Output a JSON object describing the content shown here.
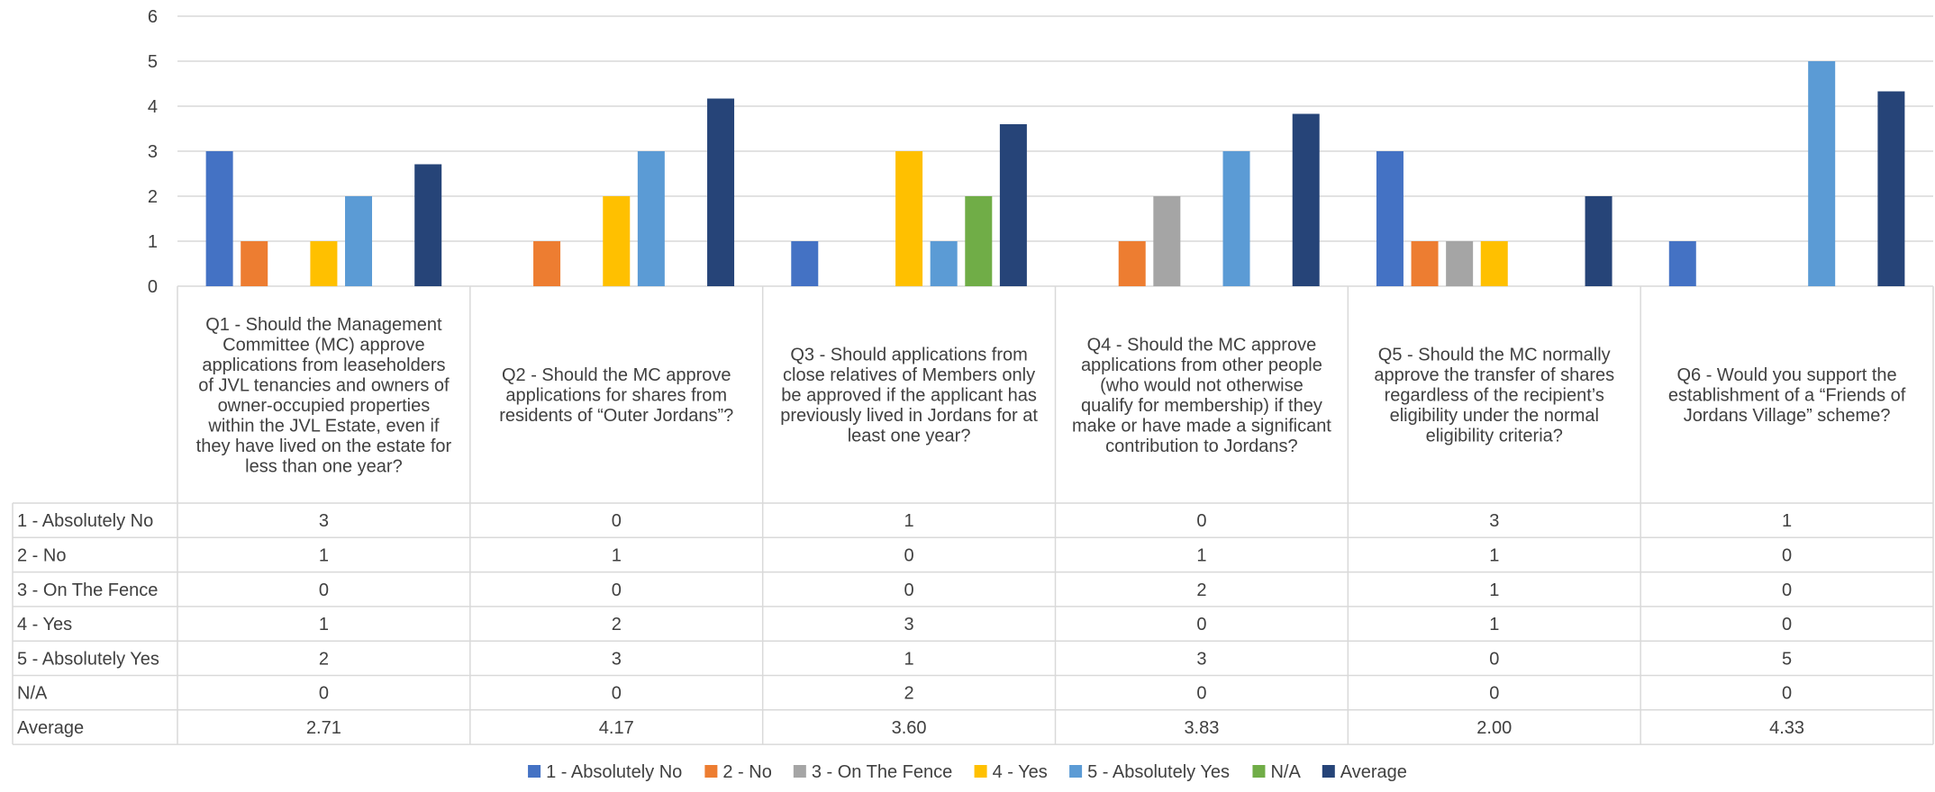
{
  "chart_data": {
    "type": "bar",
    "ylim": [
      0,
      6
    ],
    "yticks": [
      0,
      1,
      2,
      3,
      4,
      5,
      6
    ],
    "grid": true,
    "legend_position": "bottom",
    "categories": [
      "Q1 - Should the Management Committee (MC) approve applications from leaseholders of JVL tenancies and owners of owner-occupied properties within the JVL Estate, even if they have lived on the estate for less than one year?",
      "Q2 - Should the MC approve applications for shares from residents of “Outer Jordans”?",
      "Q3 - Should applications from close relatives of Members only be approved if the applicant has previously lived in Jordans for at least one year?",
      "Q4 - Should the MC approve applications from other people (who would not otherwise qualify for membership) if they make or have made a significant contribution to Jordans?",
      "Q5 - Should the MC normally approve the transfer of shares regardless of the recipient’s eligibility under the normal eligibility criteria?",
      "Q6 - Would you support the establishment of a “Friends of Jordans Village” scheme?"
    ],
    "category_lines": [
      [
        "Q1 - Should the Management",
        "Committee (MC) approve",
        "applications from leaseholders",
        "of JVL tenancies and owners of",
        "owner-occupied properties",
        "within the JVL Estate, even if",
        "they have lived on the estate for",
        "less than one year?"
      ],
      [
        "Q2 - Should the MC approve",
        "applications for shares from",
        "residents of “Outer Jordans”?"
      ],
      [
        "Q3 - Should applications from",
        "close relatives of Members only",
        "be approved if the applicant has",
        "previously lived in Jordans for at",
        "least one year?"
      ],
      [
        "Q4 - Should the MC approve",
        "applications from other people",
        "(who would not otherwise",
        "qualify for membership) if they",
        "make or have made a significant",
        "contribution to Jordans?"
      ],
      [
        "Q5 - Should the MC normally",
        "approve the transfer of shares",
        "regardless of the recipient’s",
        "eligibility under the normal",
        "eligibility criteria?"
      ],
      [
        "Q6 - Would you support the",
        "establishment of a “Friends of",
        "Jordans Village” scheme?"
      ]
    ],
    "series": [
      {
        "name": "1 - Absolutely No",
        "color": "#4472C4",
        "values": [
          3,
          0,
          1,
          0,
          3,
          1
        ],
        "labels": [
          "3",
          "0",
          "1",
          "0",
          "3",
          "1"
        ]
      },
      {
        "name": "2 - No",
        "color": "#ED7D31",
        "values": [
          1,
          1,
          0,
          1,
          1,
          0
        ],
        "labels": [
          "1",
          "1",
          "0",
          "1",
          "1",
          "0"
        ]
      },
      {
        "name": "3 - On The Fence",
        "color": "#A5A5A5",
        "values": [
          0,
          0,
          0,
          2,
          1,
          0
        ],
        "labels": [
          "0",
          "0",
          "0",
          "2",
          "1",
          "0"
        ]
      },
      {
        "name": "4 - Yes",
        "color": "#FFC000",
        "values": [
          1,
          2,
          3,
          0,
          1,
          0
        ],
        "labels": [
          "1",
          "2",
          "3",
          "0",
          "1",
          "0"
        ]
      },
      {
        "name": "5 - Absolutely Yes",
        "color": "#5B9BD5",
        "values": [
          2,
          3,
          1,
          3,
          0,
          5
        ],
        "labels": [
          "2",
          "3",
          "1",
          "3",
          "0",
          "5"
        ]
      },
      {
        "name": "N/A",
        "color": "#70AD47",
        "values": [
          0,
          0,
          2,
          0,
          0,
          0
        ],
        "labels": [
          "0",
          "0",
          "2",
          "0",
          "0",
          "0"
        ]
      },
      {
        "name": "Average",
        "color": "#264478",
        "values": [
          2.71,
          4.17,
          3.6,
          3.83,
          2.0,
          4.33
        ],
        "labels": [
          "2.71",
          "4.17",
          "3.60",
          "3.83",
          "2.00",
          "4.33"
        ]
      }
    ]
  }
}
